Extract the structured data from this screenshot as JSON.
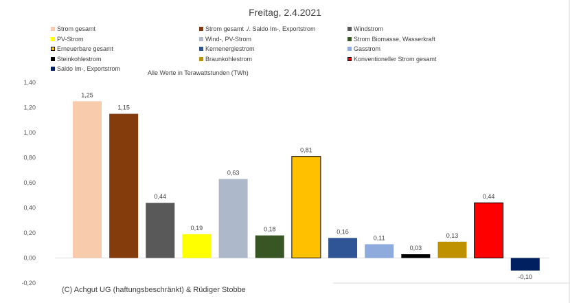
{
  "chart_data": {
    "type": "bar",
    "title": "Freitag, 2.4.2021",
    "subtitle": "Alle Werte in Terawattstunden (TWh)",
    "ylim": [
      -0.2,
      1.4
    ],
    "yticks": [
      "1,40",
      "1,20",
      "1,00",
      "0,80",
      "0,60",
      "0,40",
      "0,20",
      "0,00",
      "-0,20"
    ],
    "yticks_values": [
      1.4,
      1.2,
      1.0,
      0.8,
      0.6,
      0.4,
      0.2,
      0.0,
      -0.2
    ],
    "grid": false,
    "legend_position": "top",
    "series": [
      {
        "name": "Strom gesamt",
        "value": 1.25,
        "label": "1,25",
        "color": "#F8CBAD",
        "border": false
      },
      {
        "name": "Strom gesamt ./. Saldo Im-, Exportstrom",
        "value": 1.15,
        "label": "1,15",
        "color": "#843C0C",
        "border": false
      },
      {
        "name": "Windstrom",
        "value": 0.44,
        "label": "0,44",
        "color": "#595959",
        "border": false
      },
      {
        "name": "PV-Strom",
        "value": 0.19,
        "label": "0,19",
        "color": "#FFFF00",
        "border": false
      },
      {
        "name": "Wind-, PV-Strom",
        "value": 0.63,
        "label": "0,63",
        "color": "#ADB9CA",
        "border": false
      },
      {
        "name": "Strom Biomasse, Wasserkraft",
        "value": 0.18,
        "label": "0,18",
        "color": "#375623",
        "border": false
      },
      {
        "name": "Erneuerbare gesamt",
        "value": 0.81,
        "label": "0,81",
        "color": "#FFC000",
        "border": true
      },
      {
        "name": "Kernenergiestrom",
        "value": 0.16,
        "label": "0,16",
        "color": "#2F5597",
        "border": false
      },
      {
        "name": "Gasstrom",
        "value": 0.11,
        "label": "0,11",
        "color": "#8FAADC",
        "border": false
      },
      {
        "name": "Steinkohlestrom",
        "value": 0.03,
        "label": "0,03",
        "color": "#000000",
        "border": false
      },
      {
        "name": "Braunkohlestrom",
        "value": 0.13,
        "label": "0,13",
        "color": "#BF9000",
        "border": false
      },
      {
        "name": "Konventioneller Strom gesamt",
        "value": 0.44,
        "label": "0,44",
        "color": "#FF0000",
        "border": true
      },
      {
        "name": "Saldo Im-, Exportstrom",
        "value": -0.1,
        "label": "-0,10",
        "color": "#002060",
        "border": false
      }
    ]
  },
  "copyright": "(C) Achgut UG (haftungsbeschränkt) & Rüdiger Stobbe"
}
